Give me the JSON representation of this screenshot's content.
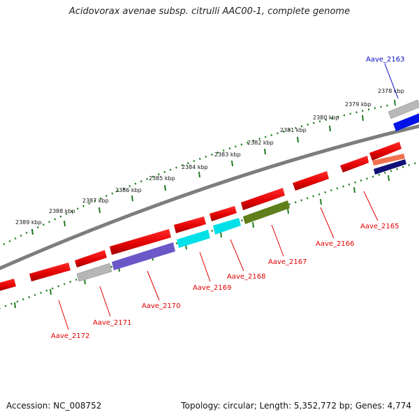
{
  "title": "Acidovorax avenae subsp. citrulli AAC00-1, complete genome",
  "footer": {
    "accession": "Accession: NC_008752",
    "summary": "Topology: circular; Length: 5,352,772 bp; Genes: 4,774"
  },
  "scale_labels": [
    "2378 kbp",
    "2379 kbp",
    "2380 kbp",
    "2381 kbp",
    "2382 kbp",
    "2383 kbp",
    "2384 kbp",
    "2385 kbp",
    "2386 kbp",
    "2387 kbp",
    "2388 kbp",
    "2389 kbp"
  ],
  "genes": [
    {
      "name": "Aave_2163",
      "strand": "forward",
      "color": "#0a0ac8"
    },
    {
      "name": "Aave_2165",
      "strand": "reverse",
      "color": "#cc0000"
    },
    {
      "name": "Aave_2166",
      "strand": "reverse",
      "color": "#cc0000"
    },
    {
      "name": "Aave_2167",
      "strand": "reverse",
      "color": "#cc0000"
    },
    {
      "name": "Aave_2168",
      "strand": "reverse",
      "color": "#cc0000"
    },
    {
      "name": "Aave_2169",
      "strand": "reverse",
      "color": "#cc0000"
    },
    {
      "name": "Aave_2170",
      "strand": "reverse",
      "color": "#cc0000"
    },
    {
      "name": "Aave_2171",
      "strand": "reverse",
      "color": "#cc0000"
    },
    {
      "name": "Aave_2172",
      "strand": "reverse",
      "color": "#cc0000"
    }
  ],
  "colors": {
    "backbone": "#7a7a7a",
    "tick": "#1f7a1f",
    "cds_red": "#e00000",
    "grey": "#b4b4b4",
    "blue": "#0010e0",
    "purple": "#6b57c8",
    "cyan": "#00e0e8",
    "olive": "#5f7f1a",
    "salmon": "#f07050",
    "navy": "#101070"
  }
}
